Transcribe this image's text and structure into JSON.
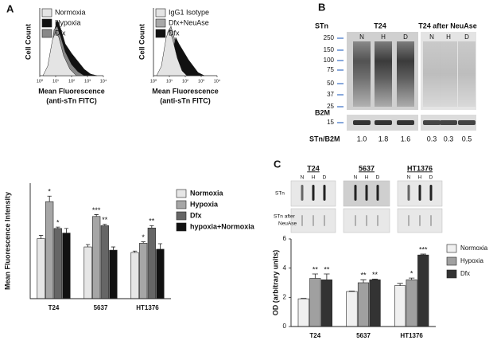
{
  "panel_labels": [
    "A",
    "B",
    "C"
  ],
  "flow_panels": [
    {
      "legend": [
        {
          "name": "Normoxia",
          "color": "#e4e4e4"
        },
        {
          "name": "Hypoxia",
          "color": "#111111"
        },
        {
          "name": "Dfx",
          "color": "#888888"
        }
      ],
      "ylabel": "Cell Count",
      "xlabel": [
        "Mean Fluorescence",
        "(anti-sTn FITC)"
      ],
      "xtick_labels": [
        "10⁰",
        "10¹",
        "10²",
        "10³",
        "10⁴"
      ]
    },
    {
      "legend": [
        {
          "name": "IgG1 Isotype",
          "color": "#e4e4e4"
        },
        {
          "name": "Dfx+NeuAse",
          "color": "#a8a8a8"
        },
        {
          "name": "Dfx",
          "color": "#111111"
        }
      ],
      "ylabel": "Cell Count",
      "xlabel": [
        "Mean Fluorescence",
        "(anti-sTn FITC)"
      ],
      "xtick_labels": [
        "10⁰",
        "10¹",
        "10²",
        "10³",
        "10⁴"
      ]
    }
  ],
  "western_blot": {
    "target": "STn",
    "groups": [
      "T24",
      "T24 after NeuAse"
    ],
    "lanes": [
      "N",
      "H",
      "D",
      "N",
      "H",
      "D"
    ],
    "markers": [
      "250",
      "150",
      "100",
      "75",
      "50",
      "37",
      "25"
    ],
    "control": "B2M",
    "control_marker": "15",
    "ratio_label": "STn/B2M",
    "ratios": [
      "1.0",
      "1.8",
      "1.6",
      "0.3",
      "0.3",
      "0.5"
    ]
  },
  "dot_blot": {
    "cell_lines": [
      "T24",
      "5637",
      "HT1376"
    ],
    "lanes": [
      "N",
      "H",
      "D"
    ],
    "row_labels": [
      [
        "STn"
      ],
      [
        "STn after",
        "NeuAse"
      ]
    ]
  },
  "chart_data": [
    {
      "type": "bar",
      "ylabel": "Mean Fluorescence Intensity",
      "categories": [
        "T24",
        "5637",
        "HT1376"
      ],
      "ylim": [
        0,
        2.5
      ],
      "series": [
        {
          "name": "Normoxia",
          "color": "#e6e6e6",
          "values": [
            1.3,
            1.12,
            1.0
          ],
          "errors": [
            0.07,
            0.05,
            0.03
          ],
          "significance": [
            null,
            null,
            null
          ]
        },
        {
          "name": "Hypoxia",
          "color": "#a6a6a6",
          "values": [
            2.1,
            1.78,
            1.2
          ],
          "errors": [
            0.12,
            0.04,
            0.03
          ],
          "significance": [
            "*",
            "***",
            "*"
          ]
        },
        {
          "name": "Dfx",
          "color": "#666666",
          "values": [
            1.52,
            1.58,
            1.53
          ],
          "errors": [
            0.03,
            0.03,
            0.05
          ],
          "significance": [
            "*",
            "**",
            "**"
          ]
        },
        {
          "name": "hypoxia+Normoxia",
          "color": "#111111",
          "values": [
            1.42,
            1.05,
            1.07
          ],
          "errors": [
            0.1,
            0.07,
            0.12
          ],
          "significance": [
            null,
            null,
            null
          ]
        }
      ]
    },
    {
      "type": "bar",
      "ylabel": "OD (arbitrary units)",
      "categories": [
        "T24",
        "5637",
        "HT1376"
      ],
      "ylim": [
        0,
        6
      ],
      "yticks": [
        0,
        2,
        4,
        6
      ],
      "series": [
        {
          "name": "Normoxia",
          "color": "#f0f0f0",
          "values": [
            1.9,
            2.4,
            2.8
          ],
          "errors": [
            0.03,
            0.03,
            0.15
          ],
          "significance": [
            null,
            null,
            null
          ]
        },
        {
          "name": "Hypoxia",
          "color": "#a0a0a0",
          "values": [
            3.3,
            3.0,
            3.2
          ],
          "errors": [
            0.3,
            0.2,
            0.12
          ],
          "significance": [
            "**",
            "**",
            "*"
          ]
        },
        {
          "name": "Dfx",
          "color": "#333333",
          "values": [
            3.2,
            3.2,
            4.9
          ],
          "errors": [
            0.4,
            0.05,
            0.06
          ],
          "significance": [
            "**",
            "**",
            "***"
          ]
        }
      ]
    }
  ]
}
